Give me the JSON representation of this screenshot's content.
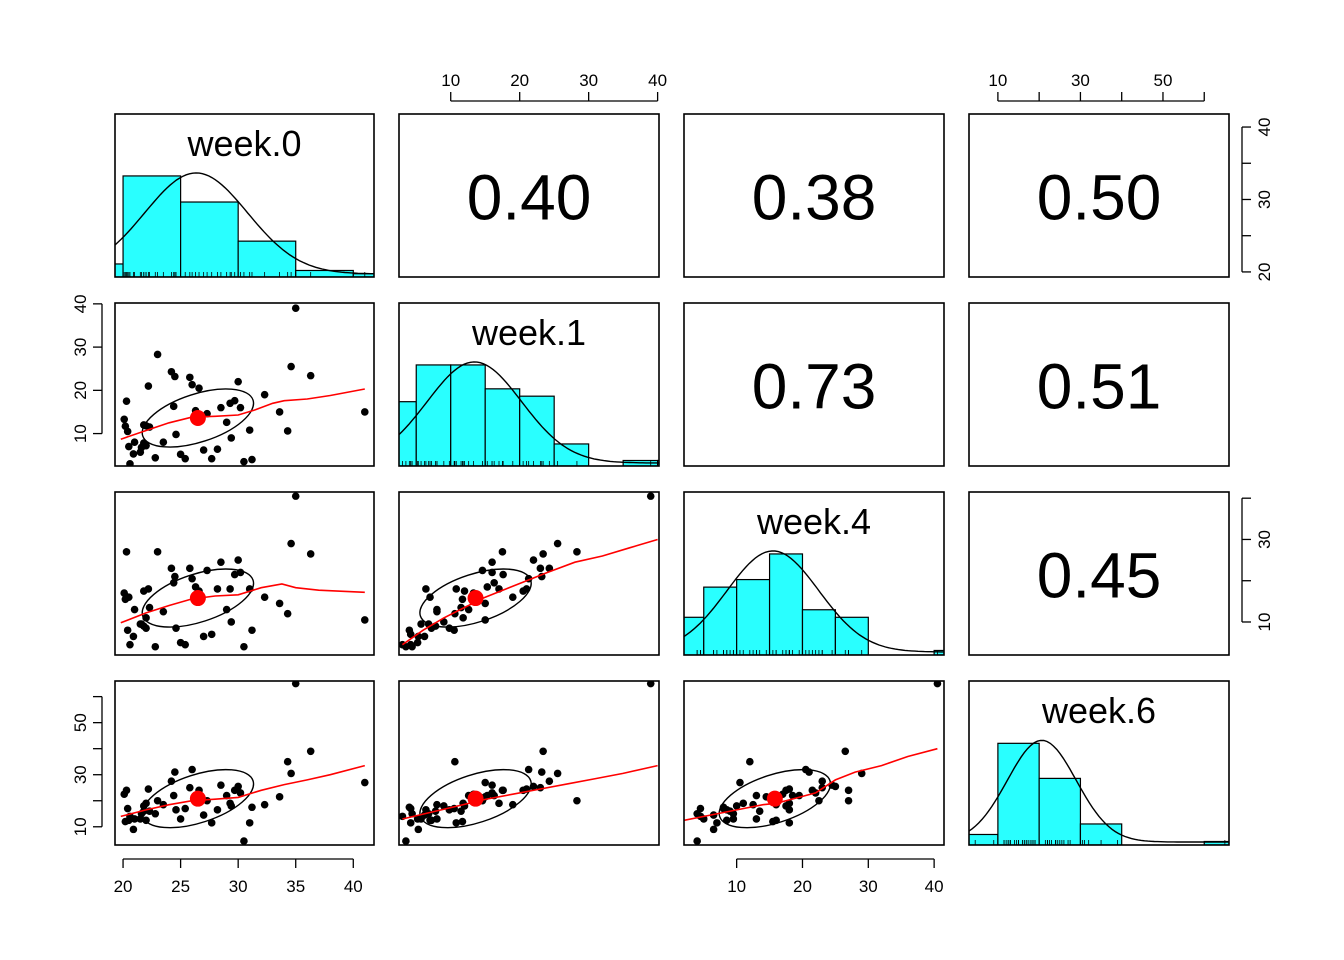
{
  "chart_data": {
    "type": "scatter-matrix",
    "title": "",
    "variables": [
      "week.0",
      "week.1",
      "week.4",
      "week.6"
    ],
    "ranges": {
      "week.0": [
        19.3,
        41.8
      ],
      "week.1": [
        2.5,
        40.2
      ],
      "week.4": [
        2.0,
        41.5
      ],
      "week.6": [
        3.0,
        66.0
      ]
    },
    "axis_ticks": {
      "week.0": [
        20,
        25,
        30,
        35,
        40
      ],
      "week.1": [
        10,
        20,
        30,
        40
      ],
      "week.4": [
        10,
        20,
        30,
        40
      ],
      "week.6": [
        10,
        20,
        30,
        40,
        50,
        60
      ]
    },
    "axis_tick_labels": {
      "week.0": [
        "20",
        "25",
        "30",
        "35",
        "40"
      ],
      "week.1": [
        "10",
        "20",
        "30",
        "40"
      ],
      "week.4": [
        "10",
        "20",
        "30",
        "40"
      ],
      "week.6": [
        "10",
        "",
        "30",
        "",
        "50",
        ""
      ],
      "week.0_right": [
        "20",
        "",
        "30",
        "",
        "40"
      ],
      "week.4_right": [
        "10",
        "",
        "30",
        ""
      ]
    },
    "right_axis_ticks": {
      "week.0": [
        20,
        25,
        30,
        35,
        40
      ],
      "week.4": [
        10,
        20,
        30,
        40
      ]
    },
    "correlations": [
      {
        "row": "week.0",
        "col": "week.1",
        "r": "0.40"
      },
      {
        "row": "week.0",
        "col": "week.4",
        "r": "0.38"
      },
      {
        "row": "week.0",
        "col": "week.6",
        "r": "0.50"
      },
      {
        "row": "week.1",
        "col": "week.4",
        "r": "0.73"
      },
      {
        "row": "week.1",
        "col": "week.6",
        "r": "0.51"
      },
      {
        "row": "week.4",
        "col": "week.6",
        "r": "0.45"
      }
    ],
    "histograms": {
      "week.0": {
        "breaks": [
          15,
          20,
          25,
          30,
          35,
          40,
          45
        ],
        "density": [
          0.02,
          0.155,
          0.115,
          0.055,
          0.01,
          0.005
        ]
      },
      "week.1": {
        "breaks": [
          0,
          5,
          10,
          15,
          20,
          25,
          30,
          35,
          40,
          45
        ],
        "density": [
          0.035,
          0.055,
          0.055,
          0.042,
          0.038,
          0.012,
          0.0,
          0.003,
          0.003
        ]
      },
      "week.4": {
        "breaks": [
          0,
          5,
          10,
          15,
          20,
          25,
          30,
          35,
          40,
          45
        ],
        "density": [
          0.025,
          0.045,
          0.05,
          0.067,
          0.03,
          0.025,
          0.0,
          0.0,
          0.003
        ]
      },
      "week.6": {
        "breaks": [
          0,
          10,
          20,
          30,
          40,
          50,
          60,
          70
        ],
        "density": [
          0.003,
          0.029,
          0.019,
          0.006,
          0.0,
          0.0,
          0.001
        ]
      }
    },
    "scatter_points": {
      "week.0": [
        20.1,
        20.2,
        20.4,
        20.3,
        21.0,
        20.9,
        20.6,
        21.5,
        22.0,
        22.3,
        22.2,
        21.6,
        22.0,
        21.8,
        22.8,
        23.5,
        24.2,
        24.4,
        24.6,
        24.5,
        25.0,
        25.4,
        25.8,
        26.0,
        26.3,
        26.6,
        27.0,
        27.3,
        27.7,
        28.2,
        28.5,
        29.0,
        29.3,
        29.4,
        29.7,
        30.0,
        30.2,
        30.5,
        31.0,
        31.2,
        32.3,
        33.6,
        34.3,
        35.0,
        34.6,
        36.3,
        41.0,
        20.5,
        21.8,
        23.0
      ],
      "week.1": [
        13.3,
        11.7,
        10.5,
        17.5,
        8.0,
        5.3,
        3.0,
        5.7,
        11.8,
        11.5,
        21.0,
        6.8,
        7.2,
        7.8,
        4.4,
        8.0,
        24.3,
        16.3,
        9.8,
        23.2,
        5.2,
        4.2,
        23.0,
        21.3,
        15.3,
        20.5,
        6.2,
        14.6,
        4.2,
        6.4,
        16.0,
        12.6,
        17.0,
        9.0,
        17.6,
        22.0,
        16.0,
        3.5,
        10.8,
        4.0,
        19.0,
        15.0,
        10.6,
        39.0,
        25.5,
        23.4,
        15.0,
        7.0,
        12.0,
        28.3
      ],
      "week.4": [
        17.0,
        15.5,
        8.0,
        27.0,
        13.0,
        6.5,
        4.5,
        9.5,
        11.0,
        13.5,
        18.0,
        9.5,
        8.5,
        9.0,
        4.0,
        12.5,
        23.0,
        19.5,
        8.5,
        21.0,
        5.0,
        4.5,
        23.0,
        20.5,
        18.5,
        17.5,
        6.5,
        22.5,
        7.0,
        18.0,
        24.5,
        13.0,
        18.0,
        10.0,
        21.5,
        25.0,
        22.0,
        4.0,
        18.0,
        8.0,
        16.0,
        14.5,
        12.0,
        40.5,
        29.0,
        26.5,
        10.5,
        16.0,
        17.5,
        27.0
      ],
      "week.6": [
        22.5,
        12.0,
        17.0,
        24.0,
        13.0,
        9.0,
        14.0,
        13.0,
        19.0,
        16.0,
        24.5,
        15.0,
        12.5,
        16.0,
        15.0,
        18.5,
        27.5,
        22.0,
        16.5,
        31.0,
        13.0,
        17.0,
        25.0,
        32.0,
        22.0,
        24.0,
        14.5,
        20.0,
        11.5,
        16.5,
        26.0,
        22.0,
        19.0,
        18.0,
        24.0,
        25.5,
        23.0,
        4.5,
        11.5,
        17.5,
        18.5,
        21.5,
        35.0,
        65.0,
        30.5,
        39.0,
        27.0,
        12.5,
        18.0,
        20.0
      ]
    },
    "means": {
      "week.0": 26.5,
      "week.1": 13.6,
      "week.4": 15.8,
      "week.6": 20.8
    },
    "loess_lines": {
      "week.0|week.1": [
        [
          19.8,
          8.7
        ],
        [
          22,
          10.7
        ],
        [
          24,
          12.5
        ],
        [
          26,
          13.8
        ],
        [
          28,
          14.0
        ],
        [
          30,
          14.3
        ],
        [
          31.5,
          15.5
        ],
        [
          33,
          17.0
        ],
        [
          34,
          17.6
        ],
        [
          36,
          18.0
        ],
        [
          38,
          18.8
        ],
        [
          41,
          20.3
        ]
      ],
      "week.0|week.4": [
        [
          19.8,
          9.8
        ],
        [
          22,
          12.2
        ],
        [
          24,
          14.0
        ],
        [
          26,
          15.6
        ],
        [
          28,
          16.3
        ],
        [
          30,
          16.6
        ],
        [
          32,
          18.3
        ],
        [
          33.8,
          19.2
        ],
        [
          35,
          18.3
        ],
        [
          37,
          17.7
        ],
        [
          41,
          17.2
        ]
      ],
      "week.0|week.6": [
        [
          19.8,
          14.0
        ],
        [
          22,
          16.5
        ],
        [
          24,
          18.5
        ],
        [
          26,
          20.0
        ],
        [
          28,
          20.6
        ],
        [
          30,
          21.3
        ],
        [
          32,
          24.0
        ],
        [
          34,
          26.2
        ],
        [
          36,
          28.0
        ],
        [
          38,
          30.0
        ],
        [
          41,
          33.5
        ]
      ],
      "week.1|week.4": [
        [
          3,
          4.5
        ],
        [
          6,
          8.0
        ],
        [
          9,
          11.0
        ],
        [
          12,
          13.5
        ],
        [
          15,
          16.0
        ],
        [
          18,
          18.0
        ],
        [
          21,
          20.0
        ],
        [
          24,
          22.0
        ],
        [
          28,
          24.5
        ],
        [
          32,
          26.0
        ],
        [
          36,
          28.0
        ],
        [
          40,
          30.0
        ]
      ],
      "week.1|week.6": [
        [
          3,
          13.0
        ],
        [
          7,
          15.5
        ],
        [
          11,
          18.0
        ],
        [
          15,
          20.5
        ],
        [
          19,
          22.5
        ],
        [
          23,
          24.5
        ],
        [
          27,
          26.5
        ],
        [
          31,
          28.5
        ],
        [
          35,
          30.5
        ],
        [
          40,
          33.5
        ]
      ],
      "week.4|week.6": [
        [
          2,
          12.5
        ],
        [
          6,
          14.5
        ],
        [
          10,
          16.5
        ],
        [
          14,
          18.5
        ],
        [
          16,
          19.0
        ],
        [
          19,
          21.0
        ],
        [
          22,
          23.0
        ],
        [
          25,
          28.0
        ],
        [
          28,
          31.0
        ],
        [
          32,
          33.5
        ],
        [
          36,
          37.0
        ],
        [
          40.5,
          40.0
        ]
      ]
    },
    "colors": {
      "histogram_fill": "#29ffff",
      "loess": "#ff0000",
      "mean_point": "#ff0000",
      "points": "#000000",
      "axis": "#000000"
    }
  }
}
